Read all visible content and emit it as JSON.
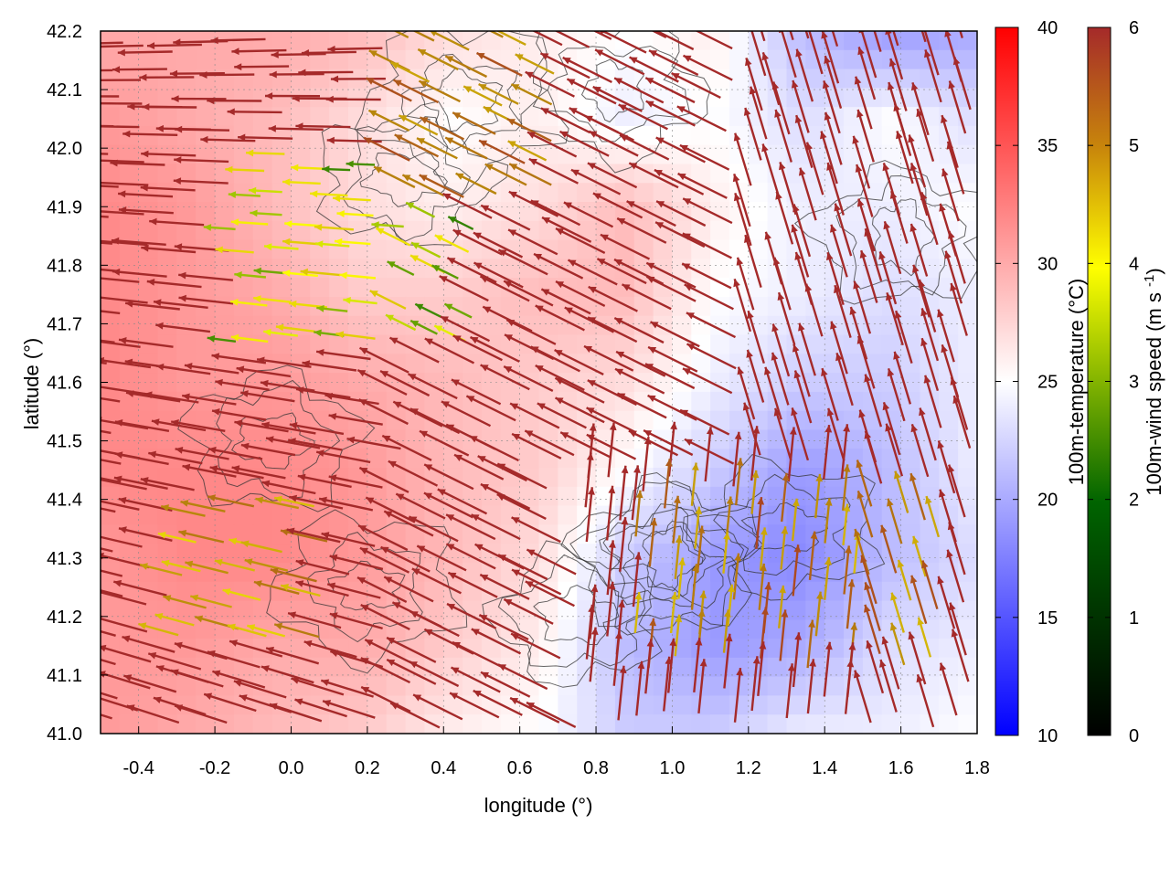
{
  "chart_data": {
    "type": "heatmap",
    "xlabel": "longitude (°)",
    "ylabel": "latitude (°)",
    "xlim": [
      -0.5,
      1.8
    ],
    "ylim": [
      41.0,
      42.2
    ],
    "xticks": [
      -0.4,
      -0.2,
      0.0,
      0.2,
      0.4,
      0.6,
      0.8,
      1.0,
      1.2,
      1.4,
      1.6,
      1.8
    ],
    "yticks": [
      41.0,
      41.1,
      41.2,
      41.3,
      41.4,
      41.5,
      41.6,
      41.7,
      41.8,
      41.9,
      42.0,
      42.1,
      42.2
    ],
    "xtick_labels": [
      "-0.4",
      "-0.2",
      "0.0",
      "0.2",
      "0.4",
      "0.6",
      "0.8",
      "1.0",
      "1.2",
      "1.4",
      "1.6",
      "1.8"
    ],
    "ytick_labels": [
      "41.0",
      "41.1",
      "41.2",
      "41.3",
      "41.4",
      "41.5",
      "41.6",
      "41.7",
      "41.8",
      "41.9",
      "42.0",
      "42.1",
      "42.2"
    ],
    "grid": true,
    "temperature": {
      "label": "100m-temperature (°C)",
      "range": [
        10,
        40
      ],
      "ticks": [
        "10",
        "15",
        "20",
        "25",
        "30",
        "35",
        "40"
      ],
      "colormap": [
        "#0000ff",
        "#ffffff",
        "#ff0000"
      ],
      "grid_lon": [
        -0.5,
        -0.27,
        -0.04,
        0.19,
        0.42,
        0.65,
        0.88,
        1.11,
        1.34,
        1.57,
        1.8
      ],
      "grid_lat": [
        42.2,
        42.05,
        41.9,
        41.75,
        41.6,
        41.45,
        41.3,
        41.15,
        41.0
      ],
      "values": [
        [
          30,
          30,
          30,
          29,
          27,
          26,
          25,
          26,
          21,
          19,
          20
        ],
        [
          31,
          30,
          29,
          27,
          25,
          26,
          24,
          25,
          23,
          25,
          23
        ],
        [
          32,
          31,
          29,
          27,
          26,
          27,
          29,
          26,
          24,
          24,
          25
        ],
        [
          32,
          31,
          30,
          28,
          28,
          29,
          29,
          25,
          24,
          23,
          24
        ],
        [
          32,
          31,
          31,
          30,
          29,
          28,
          27,
          24,
          22,
          22,
          24
        ],
        [
          32,
          32,
          32,
          31,
          29,
          28,
          25,
          22,
          19,
          21,
          24
        ],
        [
          31,
          32,
          32,
          31,
          29,
          27,
          22,
          19,
          18,
          21,
          23
        ],
        [
          31,
          31,
          30,
          30,
          28,
          26,
          21,
          19,
          20,
          23,
          24
        ],
        [
          31,
          30,
          29,
          28,
          26,
          25,
          22,
          22,
          24,
          24,
          25
        ]
      ]
    },
    "wind": {
      "label": "100m-wind speed (m s-1)",
      "range": [
        0,
        6
      ],
      "ticks": [
        "0",
        "1",
        "2",
        "3",
        "4",
        "5",
        "6"
      ],
      "colormap": [
        "#000000",
        "#006400",
        "#ffff00",
        "#b8860b",
        "#a52a2a"
      ]
    }
  }
}
